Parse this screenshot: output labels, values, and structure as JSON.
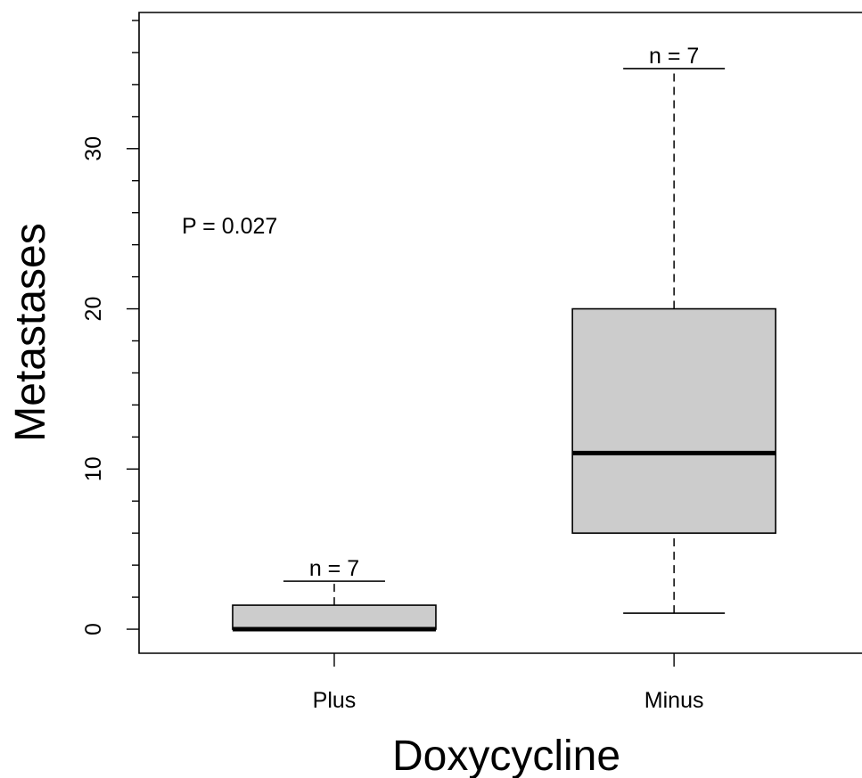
{
  "chart_data": {
    "type": "box",
    "xlabel": "Doxycycline",
    "ylabel": "Metastases",
    "ylim": [
      -1.5,
      38.5
    ],
    "yticks_major": [
      0,
      10,
      20,
      30
    ],
    "yticks_minor_step": 2,
    "annotation": "P = 0.027",
    "categories": [
      "Plus",
      "Minus"
    ],
    "boxes": [
      {
        "category": "Plus",
        "min": 0,
        "q1": 0,
        "median": 0,
        "q3": 1.5,
        "max": 3,
        "label": "n = 7"
      },
      {
        "category": "Minus",
        "min": 1,
        "q1": 6,
        "median": 11,
        "q3": 20,
        "max": 35,
        "label": "n = 7"
      }
    ],
    "box_fill": "#cccccc",
    "line_color": "#000000"
  }
}
